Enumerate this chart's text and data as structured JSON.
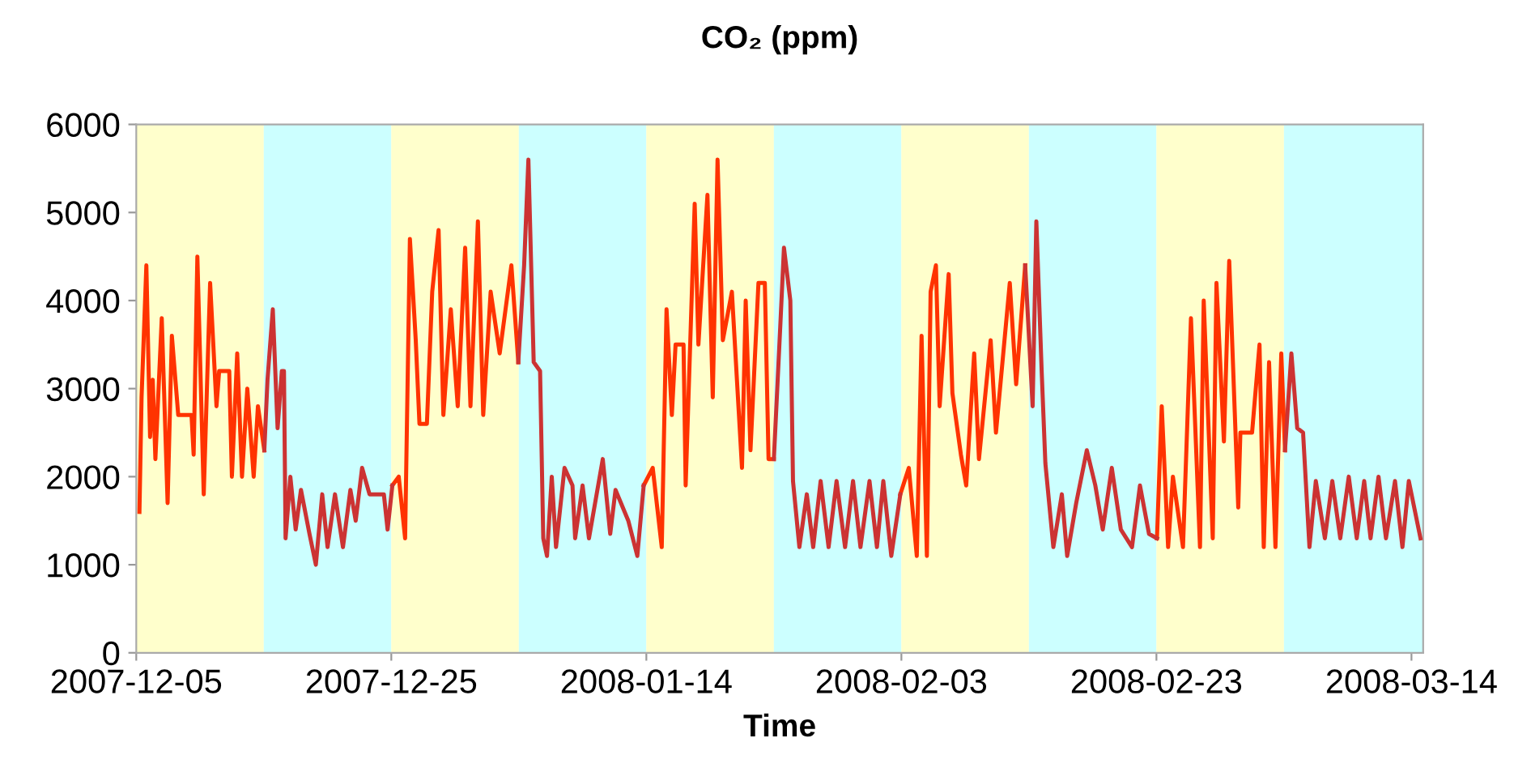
{
  "chart_data": {
    "type": "line",
    "title": "CO₂ (ppm)",
    "xlabel": "Time",
    "xlim": [
      "2007-12-05",
      "2008-03-14T22:00"
    ],
    "xticks": [
      "2007-12-05",
      "2007-12-25",
      "2008-01-14",
      "2008-02-03",
      "2008-02-23",
      "2008-03-14"
    ],
    "ylim": [
      0,
      6000
    ],
    "yticks": [
      0,
      1000,
      2000,
      3000,
      4000,
      5000,
      6000
    ],
    "grid": false,
    "marker": "none",
    "line_style": "solid",
    "bands": [
      {
        "axis": "x",
        "from": "2007-12-05",
        "to": "2007-12-15",
        "color": "#ffffcc"
      },
      {
        "axis": "x",
        "from": "2007-12-15",
        "to": "2007-12-25",
        "color": "#ccffff"
      },
      {
        "axis": "x",
        "from": "2007-12-25",
        "to": "2008-01-04",
        "color": "#ffffcc"
      },
      {
        "axis": "x",
        "from": "2008-01-04",
        "to": "2008-01-14",
        "color": "#ccffff"
      },
      {
        "axis": "x",
        "from": "2008-01-14",
        "to": "2008-01-24",
        "color": "#ffffcc"
      },
      {
        "axis": "x",
        "from": "2008-01-24",
        "to": "2008-02-03",
        "color": "#ccffff"
      },
      {
        "axis": "x",
        "from": "2008-02-03",
        "to": "2008-02-13",
        "color": "#ffffcc"
      },
      {
        "axis": "x",
        "from": "2008-02-13",
        "to": "2008-02-23",
        "color": "#ccffff"
      },
      {
        "axis": "x",
        "from": "2008-02-23",
        "to": "2008-03-04",
        "color": "#ffffcc"
      },
      {
        "axis": "x",
        "from": "2008-03-04",
        "to": "2008-03-14T22:00",
        "color": "#ccffff"
      }
    ],
    "series": [
      {
        "color": "#ff3300",
        "x": [
          "2007-12-05T06:00",
          "2007-12-05T10:00",
          "2007-12-05T19:00",
          "2007-12-06T02:00",
          "2007-12-06T07:00",
          "2007-12-06T12:00",
          "2007-12-07T00:00",
          "2007-12-07T11:00",
          "2007-12-07T19:00",
          "2007-12-08T07:00",
          "2007-12-09T08:00",
          "2007-12-09T12:00",
          "2007-12-09T19:00",
          "2007-12-10T07:00",
          "2007-12-10T19:00",
          "2007-12-11T07:00",
          "2007-12-11T12:00",
          "2007-12-12T07:00",
          "2007-12-12T12:00",
          "2007-12-12T22:00",
          "2007-12-13T07:00",
          "2007-12-13T17:00",
          "2007-12-14T05:00",
          "2007-12-14T13:00",
          "2007-12-15T01:00",
          "2007-12-20T00:00",
          "2007-12-25T02:00",
          "2007-12-25T14:00",
          "2007-12-26T02:00",
          "2007-12-26T11:00",
          "2007-12-26T22:00",
          "2007-12-27T05:00",
          "2007-12-27T19:00",
          "2007-12-28T05:00",
          "2007-12-28T17:00",
          "2007-12-29T02:00",
          "2007-12-29T16:00",
          "2007-12-30T05:00",
          "2007-12-30T19:00",
          "2007-12-31T05:00",
          "2007-12-31T19:00",
          "2008-01-01T05:00",
          "2008-01-01T19:00",
          "2008-01-02T12:00",
          "2008-01-03T10:00",
          "2008-01-03T23:00",
          "2008-01-09T00:00",
          "2008-01-13T19:00",
          "2008-01-14T12:00",
          "2008-01-15T05:00",
          "2008-01-15T14:00",
          "2008-01-16T00:00",
          "2008-01-16T07:00",
          "2008-01-16T22:00",
          "2008-01-17T02:00",
          "2008-01-17T19:00",
          "2008-01-18T02:00",
          "2008-01-18T19:00",
          "2008-01-19T05:00",
          "2008-01-19T14:00",
          "2008-01-20T00:00",
          "2008-01-20T17:00",
          "2008-01-21T12:00",
          "2008-01-21T19:00",
          "2008-01-22T04:00",
          "2008-01-22T19:00",
          "2008-01-23T07:00",
          "2008-01-23T14:00",
          "2008-01-24T00:00",
          "2008-01-29T00:00",
          "2008-02-02T22:00",
          "2008-02-03T14:00",
          "2008-02-04T05:00",
          "2008-02-04T14:00",
          "2008-02-05T00:00",
          "2008-02-05T07:00",
          "2008-02-05T17:00",
          "2008-02-06T00:00",
          "2008-02-06T17:00",
          "2008-02-07T00:00",
          "2008-02-07T16:00",
          "2008-02-08T02:00",
          "2008-02-08T17:00",
          "2008-02-09T02:00",
          "2008-02-10T00:00",
          "2008-02-10T10:00",
          "2008-02-11T12:00",
          "2008-02-12T00:00",
          "2008-02-12T17:00",
          "2008-02-18T00:00",
          "2008-02-23T01:00",
          "2008-02-23T10:00",
          "2008-02-23T22:00",
          "2008-02-24T07:00",
          "2008-02-25T02:00",
          "2008-02-25T17:00",
          "2008-02-26T10:00",
          "2008-02-26T17:00",
          "2008-02-27T10:00",
          "2008-02-27T17:00",
          "2008-02-28T07:00",
          "2008-02-28T17:00",
          "2008-02-29T10:00",
          "2008-02-29T14:00",
          "2008-03-01T12:00",
          "2008-03-02T02:00",
          "2008-03-02T10:00",
          "2008-03-02T20:00",
          "2008-03-03T08:00",
          "2008-03-03T19:00",
          "2008-03-04T02:00"
        ],
        "values": [
          1600,
          2900,
          4400,
          2450,
          3100,
          2200,
          3800,
          1700,
          3600,
          2700,
          2700,
          2250,
          4500,
          1800,
          4200,
          2800,
          3200,
          3200,
          2000,
          3400,
          2000,
          3000,
          2000,
          2800,
          2300,
          null,
          1900,
          2000,
          1300,
          4700,
          3550,
          2600,
          2600,
          4100,
          4800,
          2700,
          3900,
          2800,
          4600,
          2800,
          4900,
          2700,
          4100,
          3400,
          4400,
          3300,
          null,
          1900,
          2100,
          1200,
          3900,
          2700,
          3500,
          3500,
          1900,
          5100,
          3500,
          5200,
          2900,
          5600,
          3550,
          4100,
          2100,
          4000,
          2300,
          4200,
          4200,
          2200,
          2200,
          null,
          1800,
          2100,
          1100,
          3600,
          1100,
          4100,
          4400,
          2800,
          4300,
          2950,
          2250,
          1900,
          3400,
          2200,
          3550,
          2500,
          4200,
          3050,
          4400,
          null,
          1300,
          2800,
          1200,
          2000,
          1200,
          3800,
          1200,
          4000,
          1300,
          4200,
          2400,
          4450,
          1650,
          2500,
          2500,
          3500,
          1200,
          3300,
          1200,
          3400,
          2300
        ]
      },
      {
        "color": "#cc3333",
        "x": [
          "2007-12-15T01:00",
          "2007-12-15T07:00",
          "2007-12-15T17:00",
          "2007-12-16T02:00",
          "2007-12-16T10:00",
          "2007-12-16T14:00",
          "2007-12-16T17:00",
          "2007-12-17T02:00",
          "2007-12-17T12:00",
          "2007-12-17T22:00",
          "2007-12-18T14:00",
          "2007-12-19T02:00",
          "2007-12-19T14:00",
          "2007-12-20T00:00",
          "2007-12-20T14:00",
          "2007-12-21T05:00",
          "2007-12-21T19:00",
          "2007-12-22T05:00",
          "2007-12-22T17:00",
          "2007-12-23T07:00",
          "2007-12-24T10:00",
          "2007-12-24T17:00",
          "2007-12-25T02:00",
          "2007-12-30T00:00",
          "2008-01-03T23:00",
          "2008-01-04T10:00",
          "2008-01-04T18:00",
          "2008-01-05T04:00",
          "2008-01-05T16:00",
          "2008-01-05T22:00",
          "2008-01-06T05:00",
          "2008-01-06T14:00",
          "2008-01-06T22:00",
          "2008-01-07T14:00",
          "2008-01-08T05:00",
          "2008-01-08T10:00",
          "2008-01-09T00:00",
          "2008-01-09T12:00",
          "2008-01-10T14:00",
          "2008-01-11T04:00",
          "2008-01-11T14:00",
          "2008-01-12T14:00",
          "2008-01-13T07:00",
          "2008-01-13T19:00",
          "2008-01-19T00:00",
          "2008-01-24T00:00",
          "2008-01-24T12:00",
          "2008-01-24T19:00",
          "2008-01-25T07:00",
          "2008-01-25T12:00",
          "2008-01-26T00:00",
          "2008-01-26T14:00",
          "2008-01-27T02:00",
          "2008-01-27T16:00",
          "2008-01-28T07:00",
          "2008-01-28T22:00",
          "2008-01-29T14:00",
          "2008-01-30T05:00",
          "2008-01-30T19:00",
          "2008-01-31T12:00",
          "2008-02-01T02:00",
          "2008-02-01T14:00",
          "2008-02-02T05:00",
          "2008-02-02T22:00",
          "2008-02-08T00:00",
          "2008-02-12T17:00",
          "2008-02-13T07:00",
          "2008-02-13T14:00",
          "2008-02-14T00:00",
          "2008-02-14T07:00",
          "2008-02-14T22:00",
          "2008-02-15T14:00",
          "2008-02-16T00:00",
          "2008-02-16T17:00",
          "2008-02-17T13:00",
          "2008-02-18T05:00",
          "2008-02-18T19:00",
          "2008-02-19T12:00",
          "2008-02-20T05:00",
          "2008-02-21T02:00",
          "2008-02-21T17:00",
          "2008-02-22T10:00",
          "2008-02-23T01:00",
          "2008-02-28T00:00",
          "2008-03-04T02:00",
          "2008-03-04T14:00",
          "2008-03-05T01:00",
          "2008-03-05T12:00",
          "2008-03-06T00:00",
          "2008-03-06T12:00",
          "2008-03-07T05:00",
          "2008-03-07T19:00",
          "2008-03-08T10:00",
          "2008-03-09T02:00",
          "2008-03-09T17:00",
          "2008-03-10T07:00",
          "2008-03-10T19:00",
          "2008-03-11T10:00",
          "2008-03-12T00:00",
          "2008-03-12T17:00",
          "2008-03-13T07:00",
          "2008-03-13T19:00",
          "2008-03-14T17:00"
        ],
        "values": [
          2300,
          3100,
          3900,
          2550,
          3200,
          3200,
          1300,
          2000,
          1400,
          1850,
          1350,
          1000,
          1800,
          1200,
          1800,
          1200,
          1850,
          1500,
          2100,
          1800,
          1800,
          1400,
          1900,
          null,
          3300,
          4400,
          5600,
          3300,
          3200,
          1300,
          1100,
          2000,
          1200,
          2100,
          1900,
          1300,
          1900,
          1300,
          2200,
          1350,
          1850,
          1500,
          1100,
          1900,
          null,
          2200,
          3700,
          4600,
          4000,
          1950,
          1200,
          1800,
          1200,
          1950,
          1200,
          1950,
          1200,
          1950,
          1200,
          1950,
          1200,
          1950,
          1100,
          1800,
          null,
          4400,
          2800,
          4900,
          3200,
          2150,
          1200,
          1800,
          1100,
          1700,
          2300,
          1900,
          1400,
          2100,
          1400,
          1200,
          1900,
          1350,
          1300,
          null,
          2300,
          3400,
          2550,
          2500,
          1200,
          1950,
          1300,
          1950,
          1300,
          2000,
          1300,
          1950,
          1300,
          2000,
          1300,
          1950,
          1200,
          1950,
          1300
        ]
      }
    ]
  }
}
